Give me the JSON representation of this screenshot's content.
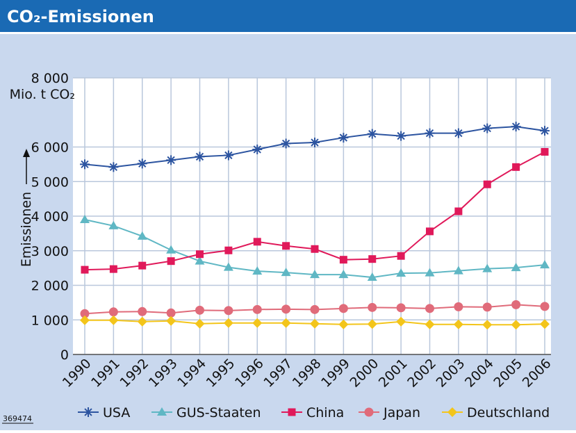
{
  "chart_data": {
    "type": "line",
    "title": "CO₂-Emissionen",
    "y_label": "Emissionen",
    "unit": "Mio. t CO₂",
    "source_id": "369474",
    "x": [
      "1990",
      "1991",
      "1992",
      "1993",
      "1994",
      "1995",
      "1996",
      "1997",
      "1998",
      "1999",
      "2000",
      "2001",
      "2002",
      "2003",
      "2004",
      "2005",
      "2006"
    ],
    "series": [
      {
        "name": "USA",
        "color": "#2c54a0",
        "marker": "star",
        "values": [
          5500,
          5420,
          5520,
          5620,
          5720,
          5760,
          5930,
          6100,
          6130,
          6270,
          6380,
          6320,
          6400,
          6400,
          6540,
          6590,
          6470
        ]
      },
      {
        "name": "GUS-Staaten",
        "color": "#5fb7c4",
        "marker": "triangle",
        "values": [
          3900,
          3720,
          3420,
          3020,
          2700,
          2520,
          2410,
          2370,
          2310,
          2310,
          2230,
          2350,
          2360,
          2420,
          2480,
          2510,
          2590
        ]
      },
      {
        "name": "China",
        "color": "#e0195a",
        "marker": "square",
        "values": [
          2450,
          2470,
          2570,
          2700,
          2900,
          3010,
          3260,
          3140,
          3050,
          2740,
          2760,
          2850,
          3560,
          4140,
          4920,
          5420,
          5860
        ]
      },
      {
        "name": "Japan",
        "color": "#e06b7a",
        "marker": "circle",
        "values": [
          1180,
          1230,
          1240,
          1200,
          1280,
          1270,
          1300,
          1310,
          1300,
          1330,
          1360,
          1350,
          1330,
          1380,
          1370,
          1440,
          1390
        ]
      },
      {
        "name": "Deutschland",
        "color": "#f3c51b",
        "marker": "diamond",
        "values": [
          990,
          990,
          950,
          970,
          890,
          910,
          910,
          910,
          890,
          870,
          880,
          950,
          870,
          870,
          860,
          860,
          880
        ]
      }
    ],
    "ylim": [
      0,
      8000
    ],
    "yticks": [
      0,
      {
        "value": 1000,
        "label": "1 000"
      },
      {
        "value": 2000,
        "label": "2 000"
      },
      {
        "value": 3000,
        "label": "3 000"
      },
      {
        "value": 4000,
        "label": "4 000"
      },
      {
        "value": 5000,
        "label": "5 000"
      },
      {
        "value": 6000,
        "label": "6 000"
      },
      {
        "value": 8000,
        "label": "8 000"
      }
    ],
    "grid": true
  }
}
